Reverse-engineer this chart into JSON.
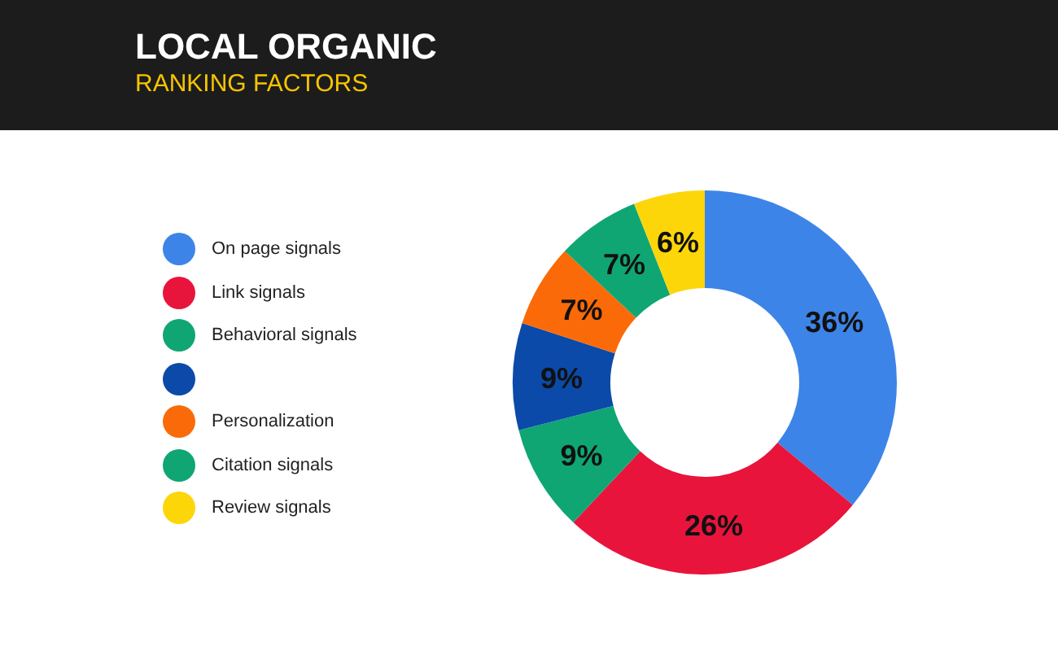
{
  "chart_data": {
    "type": "donut",
    "title": "LOCAL ORGANIC",
    "subtitle": "RANKING FACTORS",
    "categories": [
      "On page signals",
      "Link signals",
      "Behavioral signals",
      null,
      "Personalization",
      "Citation signals",
      "Review signals"
    ],
    "values": [
      36,
      26,
      9,
      9,
      7,
      7,
      6
    ],
    "colors": [
      "#3d84e8",
      "#e8143c",
      "#0fa674",
      "#0b4aa8",
      "#fb6a08",
      "#0fa674",
      "#fdd60a"
    ],
    "value_labels": [
      "36%",
      "26%",
      "9%",
      "9%",
      "7%",
      "7%",
      "6%"
    ],
    "legend": "left"
  }
}
